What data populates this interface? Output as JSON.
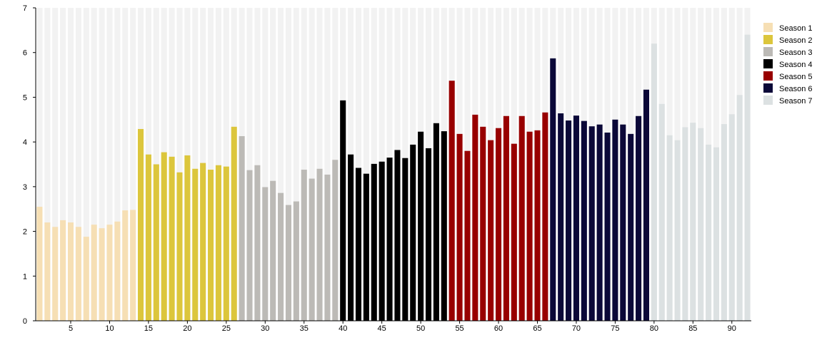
{
  "chart_data": {
    "type": "bar",
    "title": "",
    "xlabel": "",
    "ylabel": "",
    "ylim": [
      0,
      7
    ],
    "yticks": [
      0,
      1,
      2,
      3,
      4,
      5,
      6,
      7
    ],
    "xticks": [
      5,
      10,
      15,
      20,
      25,
      30,
      35,
      40,
      45,
      50,
      55,
      60,
      65,
      70,
      75,
      80,
      85,
      90
    ],
    "background_bar_value": 7,
    "background_bar_color": "#f2f2f2",
    "legend_position": "right",
    "series": [
      {
        "name": "Season 1",
        "color": "#f6dfb4",
        "x_start": 1,
        "values": [
          2.55,
          2.2,
          2.1,
          2.25,
          2.2,
          2.1,
          1.88,
          2.15,
          2.07,
          2.15,
          2.22,
          2.47,
          2.48
        ]
      },
      {
        "name": "Season 2",
        "color": "#dcc63c",
        "x_start": 14,
        "values": [
          4.29,
          3.72,
          3.5,
          3.77,
          3.67,
          3.32,
          3.7,
          3.4,
          3.53,
          3.38,
          3.48,
          3.45,
          4.34
        ]
      },
      {
        "name": "Season 3",
        "color": "#bcbab6",
        "x_start": 27,
        "values": [
          4.13,
          3.37,
          3.48,
          2.99,
          3.13,
          2.86,
          2.59,
          2.67,
          3.38,
          3.18,
          3.4,
          3.27,
          3.6
        ]
      },
      {
        "name": "Season 4",
        "color": "#000000",
        "x_start": 40,
        "values": [
          4.93,
          3.72,
          3.42,
          3.29,
          3.51,
          3.56,
          3.65,
          3.82,
          3.64,
          3.94,
          4.23,
          3.86,
          4.42,
          4.24
        ]
      },
      {
        "name": "Season 5",
        "color": "#980000",
        "x_start": 54,
        "values": [
          5.37,
          4.18,
          3.8,
          4.61,
          4.34,
          4.04,
          4.31,
          4.58,
          3.96,
          4.58,
          4.23,
          4.26,
          4.66
        ]
      },
      {
        "name": "Season 6",
        "color": "#0b0838",
        "x_start": 67,
        "values": [
          5.87,
          4.64,
          4.48,
          4.59,
          4.47,
          4.35,
          4.39,
          4.21,
          4.5,
          4.39,
          4.18,
          4.58,
          5.17
        ]
      },
      {
        "name": "Season 7",
        "color": "#dce1e2",
        "x_start": 80,
        "values": [
          6.2,
          4.85,
          4.15,
          4.04,
          4.33,
          4.43,
          4.31,
          3.94,
          3.88,
          4.4,
          4.62,
          5.05,
          6.4
        ]
      }
    ]
  }
}
